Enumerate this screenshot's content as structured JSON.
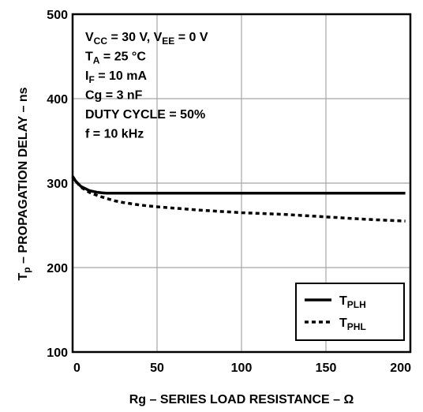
{
  "chart_data": {
    "type": "line",
    "xlabel": "Rg – SERIES LOAD RESISTANCE – Ω",
    "ylabel": "Tp – PROPAGATION DELAY – ns",
    "ylabel_main": "T",
    "ylabel_sub": "p",
    "ylabel_rest": " – PROPAGATION DELAY – ns",
    "xlim": [
      0,
      200
    ],
    "ylim": [
      100,
      500
    ],
    "xticks": [
      "0",
      "50",
      "100",
      "150",
      "200"
    ],
    "yticks": [
      "100",
      "200",
      "300",
      "400",
      "500"
    ],
    "grid": true,
    "conditions": [
      {
        "main": "V",
        "sub": "CC",
        "rest": " = 30 V, V",
        "sub2": "EE",
        "rest2": " = 0 V"
      },
      {
        "main": "T",
        "sub": "A",
        "rest": " = 25 °C"
      },
      {
        "main": "I",
        "sub": "F",
        "rest": " = 10 mA"
      },
      {
        "main": "Cg = 3 nF"
      },
      {
        "main": "DUTY CYCLE = 50%"
      },
      {
        "main": "f = 10 kHz"
      }
    ],
    "legend_position": "bottom-right",
    "series": [
      {
        "name": "TPLH",
        "name_main": "T",
        "name_sub": "PLH",
        "style": "solid",
        "x": [
          0,
          2,
          5,
          10,
          15,
          20,
          30,
          50,
          75,
          100,
          150,
          197
        ],
        "y": [
          307,
          302,
          296,
          291,
          289,
          288,
          288,
          288,
          288,
          288,
          288,
          288
        ]
      },
      {
        "name": "TPHL",
        "name_main": "T",
        "name_sub": "PHL",
        "style": "dashed",
        "x": [
          0,
          2,
          5,
          10,
          15,
          20,
          25,
          30,
          40,
          50,
          75,
          100,
          125,
          150,
          175,
          197
        ],
        "y": [
          308,
          302,
          295,
          289,
          285,
          282,
          279,
          277,
          274,
          272,
          268,
          265,
          263,
          260,
          257,
          255
        ]
      }
    ]
  }
}
